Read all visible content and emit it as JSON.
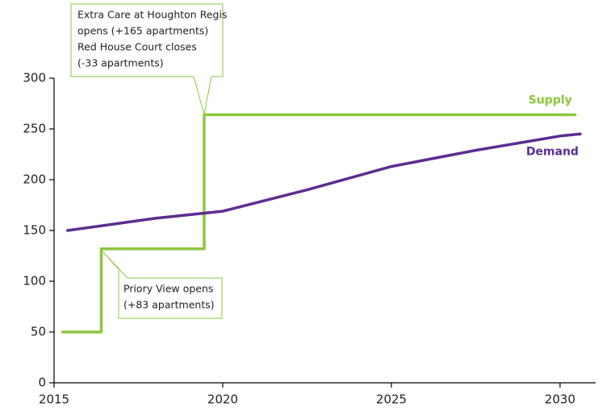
{
  "chart_data": {
    "type": "line",
    "xlim": [
      2015,
      2031
    ],
    "xticks": [
      2015,
      2020,
      2025,
      2030
    ],
    "ylim": [
      0,
      300
    ],
    "yticks": [
      0,
      50,
      100,
      150,
      200,
      250,
      300
    ],
    "grid": false,
    "series": [
      {
        "name": "Supply",
        "color": "#8dc63f",
        "step": true,
        "x": [
          2015.25,
          2016.4,
          2016.4,
          2019.45,
          2019.45,
          2030.45
        ],
        "values": [
          50,
          50,
          132,
          132,
          264,
          264
        ]
      },
      {
        "name": "Demand",
        "color": "#5c2d91",
        "x": [
          2015.4,
          2018,
          2020,
          2022.5,
          2025,
          2027.5,
          2030,
          2030.6
        ],
        "values": [
          150,
          162,
          169,
          190,
          213,
          229,
          243,
          245
        ]
      }
    ],
    "annotations": [
      {
        "lines": [
          "Extra Care at Houghton Regis",
          "opens (+165 apartments)",
          "Red House Court closes",
          "(-33 apartments)"
        ]
      },
      {
        "lines": [
          "Priory View opens",
          "(+83 apartments)"
        ]
      }
    ]
  }
}
